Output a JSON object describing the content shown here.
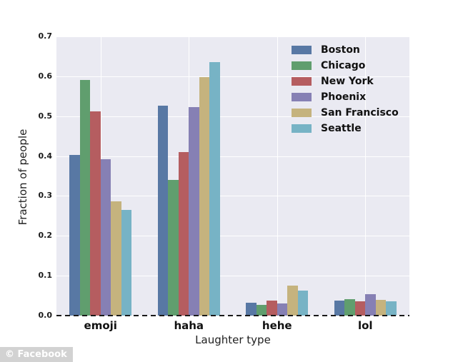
{
  "watermark": {
    "label": "© Facebook"
  },
  "chart_data": {
    "type": "bar",
    "title": "",
    "xlabel": "Laughter type",
    "ylabel": "Fraction of people",
    "categories": [
      "emoji",
      "haha",
      "hehe",
      "lol"
    ],
    "series": [
      {
        "name": "Boston",
        "color": "#5878a4",
        "values": [
          0.403,
          0.526,
          0.033,
          0.037
        ]
      },
      {
        "name": "Chicago",
        "color": "#609e6e",
        "values": [
          0.59,
          0.34,
          0.026,
          0.042
        ]
      },
      {
        "name": "New York",
        "color": "#b55d60",
        "values": [
          0.512,
          0.41,
          0.038,
          0.036
        ]
      },
      {
        "name": "Phoenix",
        "color": "#8680b4",
        "values": [
          0.392,
          0.523,
          0.03,
          0.053
        ]
      },
      {
        "name": "San Francisco",
        "color": "#c5b37e",
        "values": [
          0.287,
          0.598,
          0.075,
          0.039
        ]
      },
      {
        "name": "Seattle",
        "color": "#77b3c5",
        "values": [
          0.265,
          0.635,
          0.062,
          0.036
        ]
      }
    ],
    "ylim": [
      0,
      0.7
    ],
    "yticks": [
      0.0,
      0.1,
      0.2,
      0.3,
      0.4,
      0.5,
      0.6,
      0.7
    ],
    "grid": true,
    "legend_position": "upper right",
    "plot_background": "#eaeaf2",
    "gridline_color": "#ffffff",
    "zero_line_style": "dashed"
  }
}
